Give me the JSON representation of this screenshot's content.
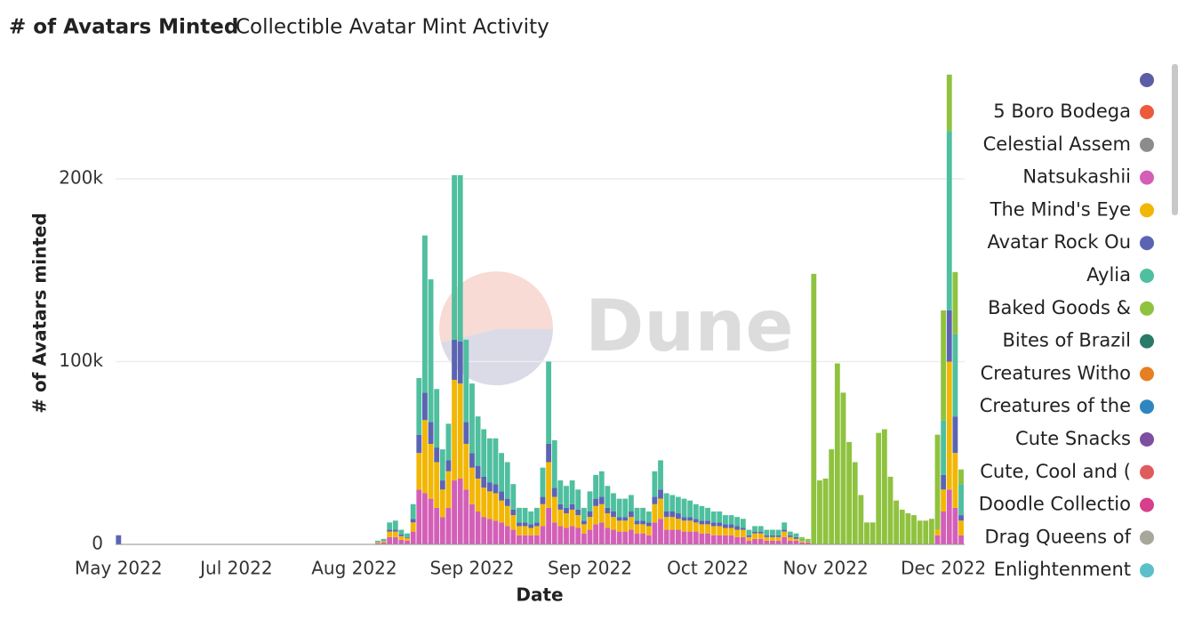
{
  "chart_data": {
    "type": "stacked-bar",
    "title": "# of Avatars Minted",
    "subtitle": "Collectible Avatar Mint Activity",
    "watermark": "Dune",
    "x_label": "Date",
    "y_label": "# of Avatars minted",
    "xlim": [
      -0.5,
      143.6
    ],
    "xticks": [
      {
        "value": 0,
        "label": "May 2022"
      },
      {
        "value": 20,
        "label": "Jul 2022"
      },
      {
        "value": 40,
        "label": "Aug 2022"
      },
      {
        "value": 60,
        "label": "Sep 2022"
      },
      {
        "value": 80,
        "label": "Sep 2022"
      },
      {
        "value": 100,
        "label": "Oct 2022"
      },
      {
        "value": 120,
        "label": "Nov 2022"
      },
      {
        "value": 140,
        "label": "Dec 2022"
      }
    ],
    "ylim": [
      0,
      270000
    ],
    "yticks": [
      0,
      {
        "value": 100000,
        "label": "100k"
      },
      {
        "value": 200000,
        "label": "200k"
      }
    ],
    "grid": true,
    "x": [
      0,
      44,
      45,
      46,
      47,
      48,
      49,
      50,
      51,
      52,
      53,
      54,
      55,
      56,
      57,
      58,
      59,
      60,
      61,
      62,
      63,
      64,
      65,
      66,
      67,
      68,
      69,
      70,
      71,
      72,
      73,
      74,
      75,
      76,
      77,
      78,
      79,
      80,
      81,
      82,
      83,
      84,
      85,
      86,
      87,
      88,
      89,
      90,
      91,
      92,
      93,
      94,
      95,
      96,
      97,
      98,
      99,
      100,
      101,
      102,
      103,
      104,
      105,
      106,
      107,
      108,
      109,
      110,
      111,
      112,
      113,
      114,
      115,
      116,
      117,
      118,
      119,
      120,
      121,
      122,
      123,
      124,
      125,
      126,
      127,
      128,
      129,
      130,
      131,
      132,
      133,
      134,
      135,
      136,
      137,
      138,
      139,
      140,
      141,
      142,
      143
    ],
    "series": [
      {
        "name": "Natsukashii",
        "color": "#d35fb7",
        "values": [
          0,
          600,
          1000,
          4000,
          4000,
          2500,
          2000,
          7000,
          30000,
          28000,
          25000,
          20000,
          15000,
          20000,
          35000,
          36000,
          30000,
          22000,
          18000,
          15000,
          14000,
          13000,
          12000,
          10000,
          8000,
          5000,
          5000,
          5000,
          5000,
          10000,
          20000,
          12000,
          10000,
          9000,
          10000,
          9000,
          6000,
          8000,
          11000,
          12000,
          9000,
          8000,
          7000,
          7000,
          8000,
          6000,
          6000,
          5000,
          12000,
          14000,
          8000,
          8000,
          8000,
          7000,
          7000,
          7000,
          6000,
          6000,
          5000,
          5000,
          5000,
          5000,
          4000,
          4000,
          2000,
          3000,
          3000,
          2000,
          2000,
          2000,
          4000,
          2000,
          2000,
          1000,
          1000,
          0,
          0,
          0,
          0,
          0,
          0,
          0,
          0,
          0,
          0,
          0,
          0,
          0,
          0,
          0,
          0,
          0,
          0,
          0,
          0,
          0,
          5000,
          18000,
          30000,
          20000,
          5000
        ]
      },
      {
        "name": "The Mind's Eye",
        "color": "#f2b705",
        "values": [
          0,
          500,
          800,
          3000,
          3000,
          2000,
          1500,
          5000,
          20000,
          40000,
          30000,
          25000,
          15000,
          20000,
          55000,
          52000,
          25000,
          20000,
          18000,
          16000,
          15000,
          15000,
          12000,
          11000,
          8000,
          5000,
          5000,
          4000,
          5000,
          12000,
          25000,
          14000,
          9000,
          8000,
          9000,
          7000,
          5000,
          7000,
          10000,
          10000,
          8000,
          7000,
          6000,
          6000,
          7000,
          5000,
          5000,
          5000,
          10000,
          11000,
          7000,
          7000,
          6000,
          6000,
          6000,
          5000,
          5000,
          5000,
          5000,
          5000,
          4000,
          4000,
          4000,
          4000,
          2000,
          3000,
          3000,
          2000,
          2000,
          2000,
          3000,
          2000,
          1000,
          1000,
          500,
          0,
          0,
          0,
          0,
          0,
          0,
          0,
          0,
          0,
          0,
          0,
          0,
          0,
          0,
          0,
          0,
          0,
          0,
          0,
          0,
          0,
          3000,
          12000,
          70000,
          30000,
          8000
        ]
      },
      {
        "name": "Avatar Rock Ou",
        "color": "#5b64b3",
        "values": [
          5000,
          200,
          300,
          1000,
          1000,
          1000,
          500,
          2000,
          10000,
          15000,
          12000,
          8000,
          5000,
          6000,
          22000,
          23000,
          12000,
          8000,
          7000,
          6000,
          5000,
          5000,
          5000,
          4000,
          3000,
          2000,
          2000,
          2000,
          2000,
          4000,
          10000,
          5000,
          3000,
          3000,
          3000,
          3000,
          2000,
          3000,
          4000,
          4000,
          3000,
          3000,
          2000,
          2000,
          3000,
          2000,
          2000,
          2000,
          4000,
          5000,
          3000,
          3000,
          3000,
          2000,
          2000,
          2000,
          2000,
          2000,
          2000,
          2000,
          2000,
          2000,
          2000,
          1000,
          1000,
          1000,
          1000,
          1000,
          1000,
          1000,
          1000,
          1000,
          1000,
          0,
          0,
          0,
          0,
          0,
          0,
          0,
          0,
          0,
          0,
          0,
          0,
          0,
          0,
          0,
          0,
          0,
          0,
          0,
          0,
          0,
          0,
          0,
          0,
          8000,
          28000,
          20000,
          3000
        ]
      },
      {
        "name": "Aylia",
        "color": "#4fbf9f",
        "values": [
          0,
          700,
          900,
          4000,
          5000,
          2500,
          2000,
          8000,
          31000,
          86000,
          78000,
          32000,
          17000,
          20000,
          90000,
          91000,
          45000,
          38000,
          27000,
          26000,
          24000,
          25000,
          21000,
          20000,
          14000,
          8000,
          8000,
          7000,
          8000,
          16000,
          45000,
          26000,
          13000,
          12000,
          13000,
          11000,
          7000,
          11000,
          13000,
          14000,
          12000,
          10000,
          10000,
          10000,
          9000,
          7000,
          7000,
          6000,
          14000,
          16000,
          10000,
          9000,
          9000,
          10000,
          9000,
          8000,
          8000,
          7000,
          6000,
          6000,
          5000,
          5000,
          5000,
          5000,
          3000,
          3000,
          3000,
          3000,
          3000,
          3000,
          4000,
          2000,
          2000,
          1000,
          500,
          0,
          0,
          0,
          0,
          0,
          0,
          0,
          0,
          0,
          0,
          0,
          0,
          0,
          0,
          0,
          0,
          0,
          0,
          0,
          0,
          0,
          0,
          30000,
          98000,
          45000,
          17000
        ]
      },
      {
        "name": "Baked Goods &",
        "color": "#8fc23f",
        "values": [
          0,
          0,
          0,
          0,
          0,
          0,
          0,
          0,
          0,
          0,
          0,
          0,
          0,
          0,
          0,
          0,
          0,
          0,
          0,
          0,
          0,
          0,
          0,
          0,
          0,
          0,
          0,
          0,
          0,
          0,
          0,
          0,
          0,
          0,
          0,
          0,
          0,
          0,
          0,
          0,
          0,
          0,
          0,
          0,
          0,
          0,
          0,
          0,
          0,
          0,
          0,
          0,
          0,
          0,
          0,
          0,
          0,
          0,
          0,
          0,
          0,
          0,
          0,
          0,
          0,
          0,
          0,
          0,
          0,
          0,
          0,
          0,
          0,
          1000,
          1000,
          148000,
          35000,
          36000,
          52000,
          99000,
          83000,
          56000,
          45000,
          27000,
          12000,
          12000,
          61000,
          63000,
          37000,
          24000,
          19000,
          17000,
          16000,
          13000,
          13000,
          14000,
          52000,
          60000,
          31000,
          34000,
          8000
        ]
      }
    ],
    "other_series": [
      {
        "name": "5 Boro Bodega",
        "color": "#ec5a3c"
      },
      {
        "name": "Celestial Assem",
        "color": "#8c8c8c"
      },
      {
        "name": "Bites of Brazil",
        "color": "#2a7a6a"
      },
      {
        "name": "Creatures Witho",
        "color": "#e67e22"
      },
      {
        "name": "Creatures of the",
        "color": "#2e86c1"
      },
      {
        "name": "Cute Snacks",
        "color": "#7d4fa0"
      },
      {
        "name": "Cute, Cool and (",
        "color": "#e05c5c"
      },
      {
        "name": "Doodle Collectio",
        "color": "#d63f8c"
      },
      {
        "name": "Drag Queens of",
        "color": "#a8a89a"
      },
      {
        "name": "Enlightenment",
        "color": "#5bc0c8"
      }
    ]
  }
}
